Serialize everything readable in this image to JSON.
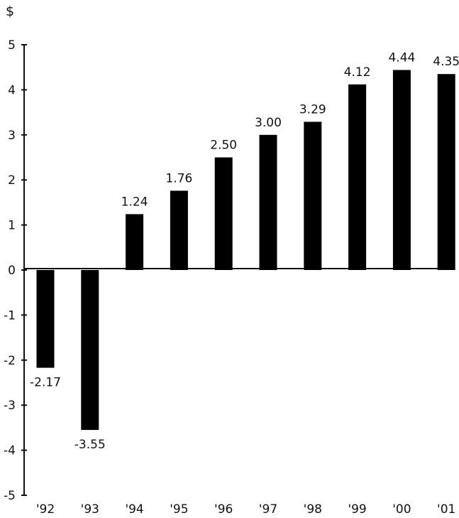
{
  "chart_data": {
    "type": "bar",
    "unit": "$",
    "categories": [
      "'92",
      "'93",
      "'94",
      "'95",
      "'96",
      "'97",
      "'98",
      "'99",
      "'00",
      "'01"
    ],
    "values": [
      -2.17,
      -3.55,
      1.24,
      1.76,
      2.5,
      3.0,
      3.29,
      4.12,
      4.44,
      4.35
    ],
    "value_labels": [
      "-2.17",
      "-3.55",
      "1.24",
      "1.76",
      "2.50",
      "3.00",
      "3.29",
      "4.12",
      "4.44",
      "4.35"
    ],
    "ylim": [
      -5,
      5
    ],
    "yticks": [
      5,
      4,
      3,
      2,
      1,
      0,
      -1,
      -2,
      -3,
      -4,
      -5
    ],
    "ytick_labels": [
      "5",
      "4",
      "3",
      "2",
      "1",
      "0",
      "-1",
      "-2",
      "-3",
      "-4",
      "-5"
    ],
    "grid": false,
    "bar_color": "#000000",
    "title": "",
    "xlabel": "",
    "ylabel": ""
  }
}
